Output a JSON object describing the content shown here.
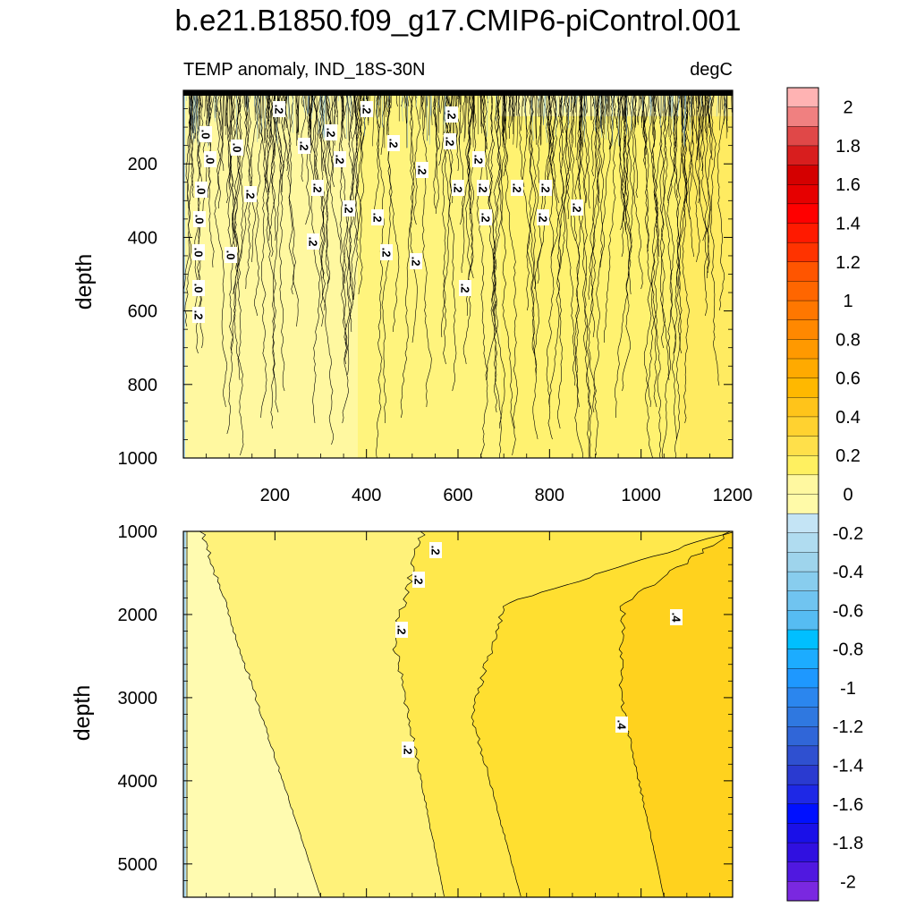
{
  "figure": {
    "title": "b.e21.B1850.f09_g17.CMIP6-piControl.001",
    "left_string": "TEMP anomaly, IND_18S-30N",
    "right_string": "degC"
  },
  "chart_data": [
    {
      "panel": "upper",
      "type": "heatmap",
      "ylabel": "depth",
      "xlabel": "",
      "xlim": [
        0,
        1200
      ],
      "ylim": [
        1000,
        0
      ],
      "xticks": [
        200,
        400,
        600,
        800,
        1000,
        1200
      ],
      "yticks": [
        200,
        400,
        600,
        800,
        1000
      ],
      "xtick_labels": [
        "200",
        "400",
        "600",
        "800",
        "1000",
        "1200"
      ],
      "ytick_labels": [
        "200",
        "400",
        "600",
        "800",
        "1000"
      ],
      "field": "mostly 0 to 0.2 degC with noisy near-surface structure and a thin 0 band at left",
      "contour_labels": [
        ".0",
        ".0",
        ".0",
        ".0",
        ".0",
        ".0",
        ".0",
        ".0",
        ".2",
        ".2",
        ".2",
        ".2",
        ".2",
        ".2",
        ".2",
        ".2",
        ".2",
        ".2",
        ".2",
        ".2",
        ".2",
        ".2",
        ".2",
        ".2",
        ".2",
        ".2",
        ".2",
        ".2",
        ".2",
        ".2",
        ".2",
        ".2",
        ".2",
        ".2"
      ]
    },
    {
      "panel": "lower",
      "type": "heatmap",
      "ylabel": "depth",
      "xlabel": "",
      "xlim": [
        0,
        1200
      ],
      "ylim": [
        5400,
        1000
      ],
      "yticks": [
        1000,
        2000,
        3000,
        4000,
        5000
      ],
      "ytick_labels": [
        "1000",
        "2000",
        "3000",
        "4000",
        "5000"
      ],
      "bands": [
        {
          "min": 0.0,
          "max": 0.1,
          "boundary_x_top": 40,
          "boundary_x_bottom": 300
        },
        {
          "min": 0.1,
          "max": 0.2,
          "boundary_x_top": 480,
          "boundary_x_bottom": 560
        },
        {
          "min": 0.2,
          "max": 0.3,
          "boundary_x_top": 1200,
          "boundary_x_bottom": 780
        },
        {
          "min": 0.3,
          "max": 0.4,
          "boundary_x_top": 1200,
          "boundary_x_bottom": 1040
        },
        {
          "min": 0.4,
          "max": 0.5
        }
      ],
      "contour_labels": [
        ".2",
        ".2",
        ".2",
        ".2",
        ".4",
        ".4"
      ]
    }
  ],
  "colorbar": {
    "labels": [
      "2",
      "1.8",
      "1.6",
      "1.4",
      "1.2",
      "1",
      "0.8",
      "0.6",
      "0.4",
      "0.2",
      "0",
      "-0.2",
      "-0.4",
      "-0.6",
      "-0.8",
      "-1",
      "-1.2",
      "-1.4",
      "-1.6",
      "-1.8",
      "-2"
    ],
    "colors": [
      "#ffb3b3",
      "#f08080",
      "#e04848",
      "#d81e1e",
      "#d40000",
      "#e60000",
      "#ff0000",
      "#ff1a00",
      "#ff3300",
      "#ff5500",
      "#ff6600",
      "#ff7700",
      "#ff8800",
      "#ff9900",
      "#ffaa00",
      "#ffb800",
      "#ffc41a",
      "#ffd230",
      "#ffe04a",
      "#fff060",
      "#fff8a0",
      "#fffaa8",
      "#c4e4f5",
      "#b0dcf0",
      "#9ed4ec",
      "#88cdee",
      "#70c4f0",
      "#56bcf2",
      "#00bfff",
      "#1cacff",
      "#1e98ff",
      "#2b86ee",
      "#2f78e0",
      "#3066d8",
      "#2f50d0",
      "#2a3ad0",
      "#1e28e6",
      "#0010ff",
      "#1a10e8",
      "#3010e0",
      "#5018e0",
      "#7a28e0"
    ]
  }
}
